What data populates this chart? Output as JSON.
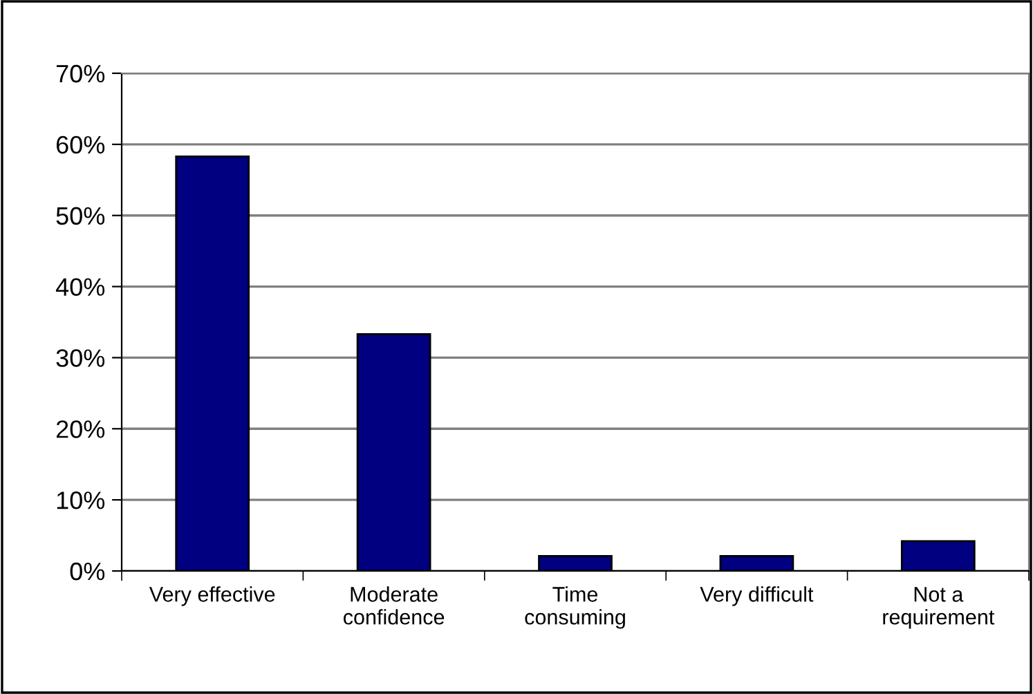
{
  "chart_data": {
    "type": "bar",
    "categories": [
      "Very effective",
      "Moderate\nconfidence",
      "Time\nconsuming",
      "Very difficult",
      "Not a\nrequirement"
    ],
    "values": [
      58.3,
      33.3,
      2.1,
      2.1,
      4.2
    ],
    "color": "#000080",
    "ylim": [
      0,
      70
    ],
    "yticks": [
      {
        "value": 0,
        "label": "0%"
      },
      {
        "value": 10,
        "label": "10%"
      },
      {
        "value": 20,
        "label": "20%"
      },
      {
        "value": 30,
        "label": "30%"
      },
      {
        "value": 40,
        "label": "40%"
      },
      {
        "value": 50,
        "label": "50%"
      },
      {
        "value": 60,
        "label": "60%"
      },
      {
        "value": 70,
        "label": "70%"
      }
    ],
    "grid": "y"
  }
}
